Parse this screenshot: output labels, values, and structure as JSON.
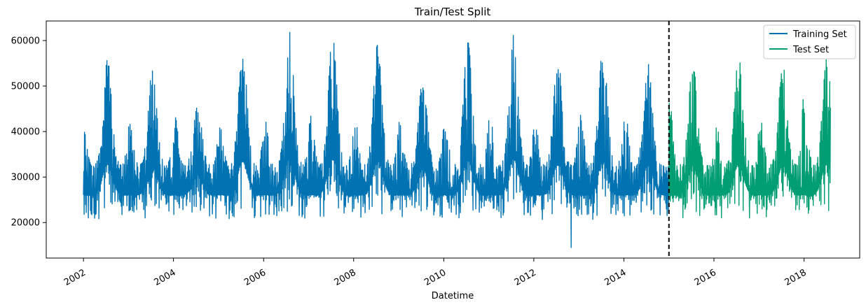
{
  "chart_data": {
    "type": "line",
    "title": "Train/Test Split",
    "xlabel": "Datetime",
    "ylabel": "",
    "xlim": [
      "2001-03-05",
      "2019-03-28"
    ],
    "ylim": [
      12200,
      64300
    ],
    "xticks": [
      "2002",
      "2004",
      "2006",
      "2008",
      "2010",
      "2012",
      "2014",
      "2016",
      "2018"
    ],
    "yticks": [
      "20000",
      "30000",
      "40000",
      "50000",
      "60000"
    ],
    "grid": false,
    "legend_position": "top-right",
    "split_date": "2015-01-01",
    "series": [
      {
        "name": "Training Set",
        "color": "#0173b2",
        "x_range": [
          "2002-01-01",
          "2015-01-01"
        ],
        "summer_peaks": [
          [
            "2002-07-15",
            56000
          ],
          [
            "2003-07-15",
            53800
          ],
          [
            "2004-07-15",
            45700
          ],
          [
            "2005-07-15",
            59000
          ],
          [
            "2006-07-31",
            62000
          ],
          [
            "2007-07-15",
            61200
          ],
          [
            "2008-07-15",
            59600
          ],
          [
            "2009-07-15",
            51300
          ],
          [
            "2010-07-15",
            59800
          ],
          [
            "2011-07-21",
            61700
          ],
          [
            "2012-07-15",
            56600
          ],
          [
            "2013-07-15",
            59100
          ],
          [
            "2014-07-15",
            55000
          ]
        ],
        "winter_peaks": [
          [
            "2002-01-05",
            40000
          ],
          [
            "2003-01-15",
            42300
          ],
          [
            "2004-01-15",
            43200
          ],
          [
            "2005-01-15",
            41900
          ],
          [
            "2006-01-15",
            43000
          ],
          [
            "2007-01-20",
            43600
          ],
          [
            "2008-01-15",
            42400
          ],
          [
            "2009-01-15",
            43100
          ],
          [
            "2010-01-15",
            43700
          ],
          [
            "2011-01-15",
            44800
          ],
          [
            "2012-01-15",
            43200
          ],
          [
            "2013-01-15",
            43900
          ],
          [
            "2014-01-15",
            44000
          ]
        ],
        "typical_min": 20000,
        "outlier": [
          "2012-10-30",
          14500
        ]
      },
      {
        "name": "Test Set",
        "color": "#029e73",
        "x_range": [
          "2015-01-01",
          "2018-08-03"
        ],
        "summer_peaks": [
          [
            "2015-07-15",
            55000
          ],
          [
            "2016-07-20",
            56400
          ],
          [
            "2017-07-15",
            55300
          ],
          [
            "2018-07-05",
            56200
          ]
        ],
        "winter_peaks": [
          [
            "2015-01-08",
            47000
          ],
          [
            "2016-01-15",
            44300
          ],
          [
            "2017-01-15",
            42500
          ],
          [
            "2018-01-06",
            49300
          ]
        ],
        "typical_min": 20000
      }
    ]
  }
}
